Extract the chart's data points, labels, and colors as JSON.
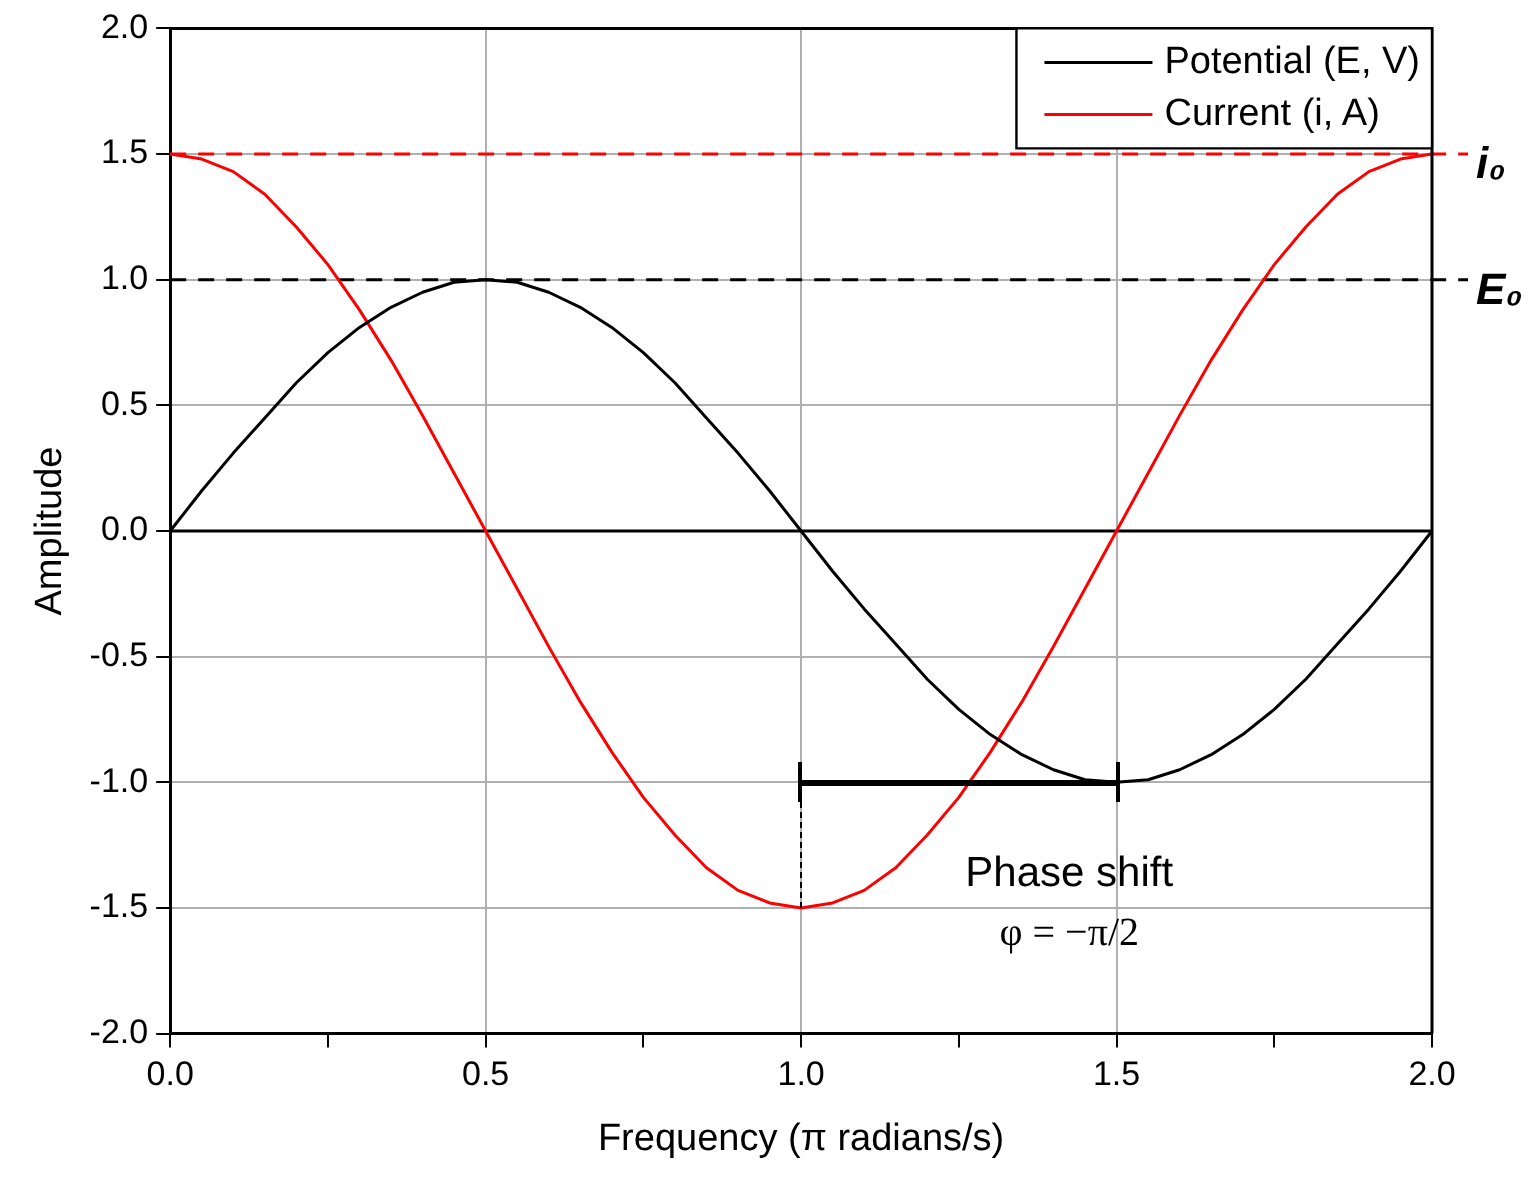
{
  "chart_data": {
    "type": "line",
    "xlabel": "Frequency (π radians/s)",
    "ylabel": "Amplitude",
    "x": [
      0,
      0.05,
      0.1,
      0.15,
      0.2,
      0.25,
      0.3,
      0.35,
      0.4,
      0.45,
      0.5,
      0.55,
      0.6,
      0.65,
      0.7,
      0.75,
      0.8,
      0.85,
      0.9,
      0.95,
      1,
      1.05,
      1.1,
      1.15,
      1.2,
      1.25,
      1.3,
      1.35,
      1.4,
      1.45,
      1.5,
      1.55,
      1.6,
      1.65,
      1.7,
      1.75,
      1.8,
      1.85,
      1.9,
      1.95,
      2
    ],
    "series": [
      {
        "name": "Potential (E, V)",
        "color": "#000000",
        "values": [
          0,
          0.16,
          0.31,
          0.45,
          0.59,
          0.71,
          0.81,
          0.89,
          0.95,
          0.99,
          1,
          0.99,
          0.95,
          0.89,
          0.81,
          0.71,
          0.59,
          0.45,
          0.31,
          0.16,
          0,
          -0.16,
          -0.31,
          -0.45,
          -0.59,
          -0.71,
          -0.81,
          -0.89,
          -0.95,
          -0.99,
          -1,
          -0.99,
          -0.95,
          -0.89,
          -0.81,
          -0.71,
          -0.59,
          -0.45,
          -0.31,
          -0.16,
          0
        ]
      },
      {
        "name": "Current (i, A)",
        "color": "#ff0000",
        "values": [
          1.5,
          1.48,
          1.43,
          1.34,
          1.21,
          1.06,
          0.88,
          0.68,
          0.46,
          0.23,
          0,
          -0.23,
          -0.46,
          -0.68,
          -0.88,
          -1.06,
          -1.21,
          -1.34,
          -1.43,
          -1.48,
          -1.5,
          -1.48,
          -1.43,
          -1.34,
          -1.21,
          -1.06,
          -0.88,
          -0.68,
          -0.46,
          -0.23,
          0,
          0.23,
          0.46,
          0.68,
          0.88,
          1.06,
          1.21,
          1.34,
          1.43,
          1.48,
          1.5
        ]
      }
    ],
    "xlim": [
      0,
      2
    ],
    "xticks": [
      {
        "value": 0,
        "label": "0.0"
      },
      {
        "value": 0.25,
        "label": null
      },
      {
        "value": 0.5,
        "label": "0.5"
      },
      {
        "value": 0.75,
        "label": null
      },
      {
        "value": 1,
        "label": "1.0"
      },
      {
        "value": 1.25,
        "label": null
      },
      {
        "value": 1.5,
        "label": "1.5"
      },
      {
        "value": 1.75,
        "label": null
      },
      {
        "value": 2,
        "label": "2.0"
      }
    ],
    "ylim": [
      -2,
      2
    ],
    "yticks": [
      {
        "value": -2,
        "label": "-2.0"
      },
      {
        "value": -1.5,
        "label": "-1.5"
      },
      {
        "value": -1,
        "label": "-1.0"
      },
      {
        "value": -0.5,
        "label": "-0.5"
      },
      {
        "value": 0,
        "label": "0.0"
      },
      {
        "value": 0.5,
        "label": "0.5"
      },
      {
        "value": 1,
        "label": "1.0"
      },
      {
        "value": 1.5,
        "label": "1.5"
      },
      {
        "value": 2,
        "label": "2.0"
      }
    ],
    "ref_lines": [
      {
        "axis": "y",
        "value": 1.5,
        "label": "i₀",
        "color": "#ff0000",
        "line_style": "dashed"
      },
      {
        "axis": "y",
        "value": 1,
        "label": "E₀",
        "color": "#000000",
        "line_style": "dashed"
      },
      {
        "axis": "y",
        "value": 0,
        "color": "#000000",
        "line_style": "solid"
      }
    ],
    "annotations": [
      "Phase shift",
      "φ = −π/2"
    ],
    "grid": true,
    "legend": "top right",
    "marker": "none",
    "line_style": "solid"
  }
}
